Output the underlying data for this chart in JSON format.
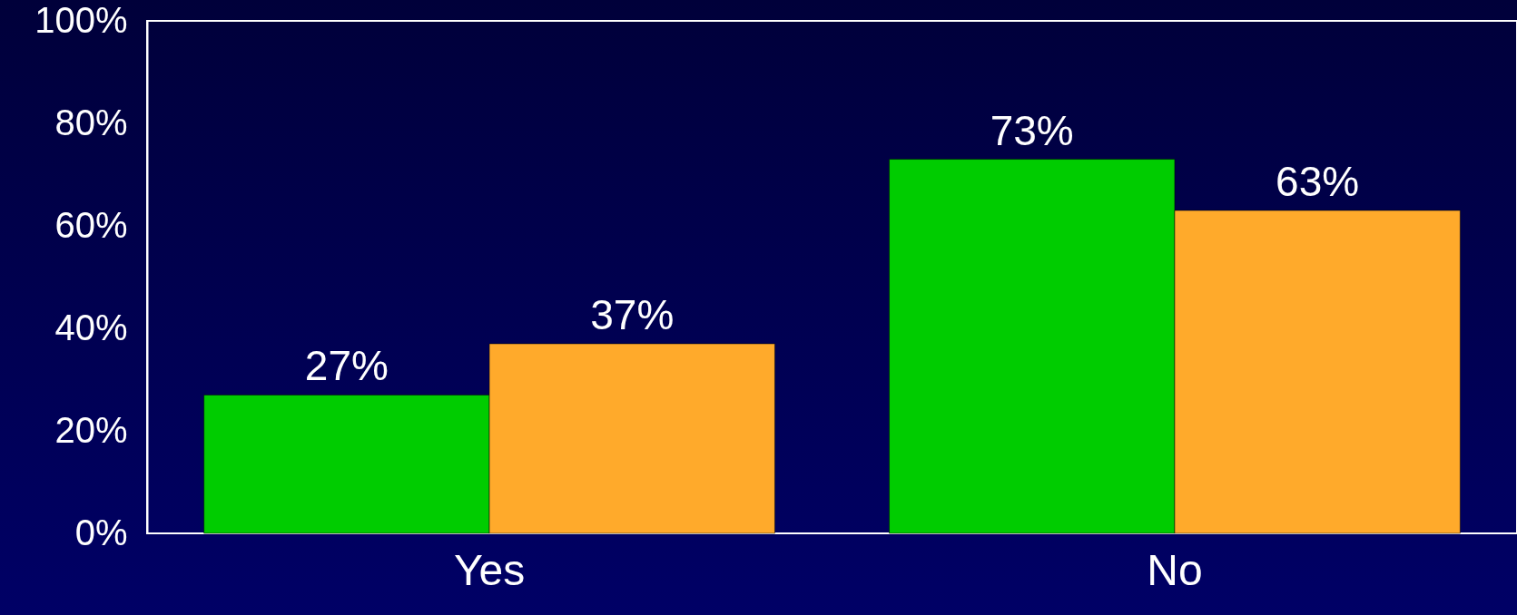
{
  "chart_data": {
    "type": "bar",
    "categories": [
      "Yes",
      "No"
    ],
    "series": [
      {
        "color": "#00cc00",
        "values": [
          27,
          73
        ],
        "value_labels": [
          "27%",
          "73%"
        ]
      },
      {
        "color": "#ffaa2b",
        "values": [
          37,
          63
        ],
        "value_labels": [
          "37%",
          "63%"
        ]
      }
    ],
    "ylim": [
      0,
      100
    ],
    "yticks": [
      {
        "value": 0,
        "label": "0%"
      },
      {
        "value": 20,
        "label": "20%"
      },
      {
        "value": 40,
        "label": "40%"
      },
      {
        "value": 60,
        "label": "60%"
      },
      {
        "value": 80,
        "label": "80%"
      },
      {
        "value": 100,
        "label": "100%"
      }
    ]
  }
}
